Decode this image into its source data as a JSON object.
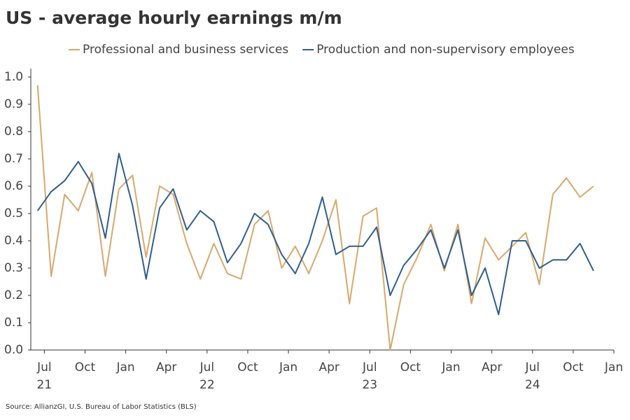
{
  "chart_data": {
    "type": "line",
    "title": "US - average hourly earnings m/m",
    "source": "Source: AllianzGI, U.S. Bureau of Labor Statistics (BLS)",
    "x": [
      "2021-06",
      "2021-07",
      "2021-08",
      "2021-09",
      "2021-10",
      "2021-11",
      "2021-12",
      "2022-01",
      "2022-02",
      "2022-03",
      "2022-04",
      "2022-05",
      "2022-06",
      "2022-07",
      "2022-08",
      "2022-09",
      "2022-10",
      "2022-11",
      "2022-12",
      "2023-01",
      "2023-02",
      "2023-03",
      "2023-04",
      "2023-05",
      "2023-06",
      "2023-07",
      "2023-08",
      "2023-09",
      "2023-10",
      "2023-11",
      "2023-12",
      "2024-01",
      "2024-02",
      "2024-03",
      "2024-04",
      "2024-05",
      "2024-06",
      "2024-07",
      "2024-08",
      "2024-09",
      "2024-10",
      "2024-11"
    ],
    "series": [
      {
        "name": "Professional and business services",
        "color": "#d9a86c",
        "values": [
          0.97,
          0.27,
          0.57,
          0.51,
          0.65,
          0.27,
          0.59,
          0.64,
          0.34,
          0.6,
          0.57,
          0.39,
          0.26,
          0.39,
          0.28,
          0.26,
          0.46,
          0.51,
          0.3,
          0.38,
          0.28,
          0.4,
          0.55,
          0.17,
          0.49,
          0.52,
          0.0,
          0.24,
          0.34,
          0.46,
          0.29,
          0.46,
          0.17,
          0.41,
          0.33,
          0.38,
          0.43,
          0.24,
          0.57,
          0.63,
          0.56,
          0.6
        ]
      },
      {
        "name": "Production and non-supervisory employees",
        "color": "#2f5e8e",
        "values": [
          0.51,
          0.58,
          0.62,
          0.69,
          0.61,
          0.41,
          0.72,
          0.53,
          0.26,
          0.52,
          0.59,
          0.44,
          0.51,
          0.47,
          0.32,
          0.39,
          0.5,
          0.46,
          0.35,
          0.28,
          0.39,
          0.56,
          0.35,
          0.38,
          0.38,
          0.45,
          0.2,
          0.31,
          0.37,
          0.44,
          0.3,
          0.44,
          0.2,
          0.3,
          0.13,
          0.4,
          0.4,
          0.3,
          0.33,
          0.33,
          0.39,
          0.29
        ]
      }
    ],
    "xlim": [
      "2021-06",
      "2025-01"
    ],
    "xticks": [
      {
        "value": "2021-07",
        "label": "Jul"
      },
      {
        "value": "2021-10",
        "label": "Oct"
      },
      {
        "value": "2022-01",
        "label": "Jan"
      },
      {
        "value": "2022-04",
        "label": "Apr"
      },
      {
        "value": "2022-07",
        "label": "Jul"
      },
      {
        "value": "2022-10",
        "label": "Oct"
      },
      {
        "value": "2023-01",
        "label": "Jan"
      },
      {
        "value": "2023-04",
        "label": "Apr"
      },
      {
        "value": "2023-07",
        "label": "Jul"
      },
      {
        "value": "2023-10",
        "label": "Oct"
      },
      {
        "value": "2024-01",
        "label": "Jan"
      },
      {
        "value": "2024-04",
        "label": "Apr"
      },
      {
        "value": "2024-07",
        "label": "Jul"
      },
      {
        "value": "2024-10",
        "label": "Oct"
      },
      {
        "value": "2025-01",
        "label": "Jan"
      }
    ],
    "year_labels": [
      {
        "value": "2021-07",
        "label": "21"
      },
      {
        "value": "2022-07",
        "label": "22"
      },
      {
        "value": "2023-07",
        "label": "23"
      },
      {
        "value": "2024-07",
        "label": "24"
      }
    ],
    "ylim": [
      0,
      1
    ],
    "yticks": [
      {
        "value": 0,
        "label": "0.0"
      },
      0.1,
      0.2,
      0.3,
      0.4,
      0.5,
      0.6,
      0.7,
      0.8,
      0.9,
      {
        "value": 1,
        "label": "1.0"
      }
    ],
    "grid": false,
    "legend": "top"
  }
}
